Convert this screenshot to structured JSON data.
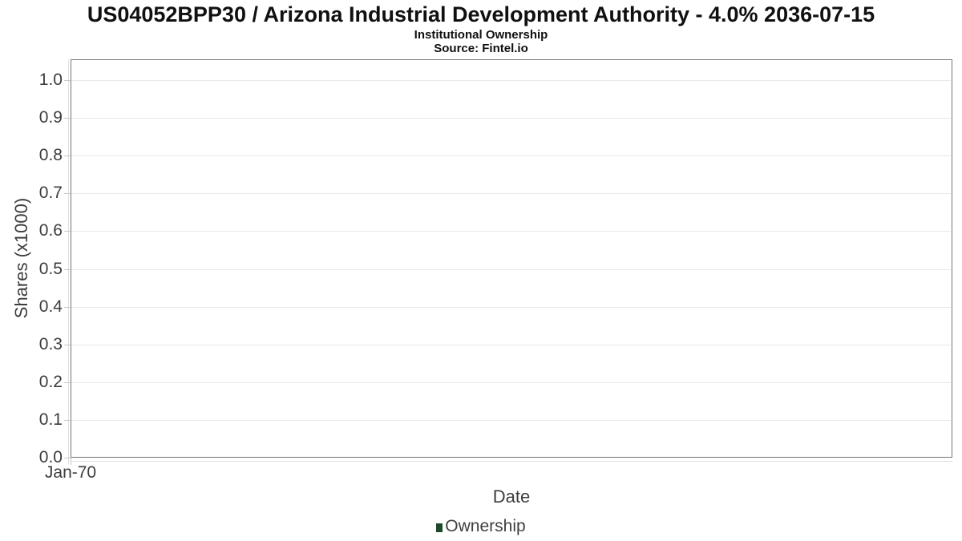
{
  "chart_data": {
    "type": "area",
    "title": "US04052BPP30 / Arizona Industrial Development Authority - 4.0% 2036-07-15",
    "subtitle": "Institutional Ownership",
    "source": "Source: Fintel.io",
    "xlabel": "Date",
    "ylabel": "Shares (x1000)",
    "x_tick_labels": [
      "Jan-70"
    ],
    "y_tick_labels": [
      "0.0",
      "0.1",
      "0.2",
      "0.3",
      "0.4",
      "0.5",
      "0.6",
      "0.7",
      "0.8",
      "0.9",
      "1.0"
    ],
    "ylim": [
      0.0,
      1.06
    ],
    "grid": "horizontal",
    "legend": {
      "position": "bottom-center",
      "entries": [
        {
          "label": "Ownership",
          "color": "#1d4a2b"
        }
      ]
    },
    "series": [
      {
        "name": "Ownership",
        "x": [],
        "values": []
      }
    ]
  },
  "colors": {
    "background": "#ffffff",
    "plot_border": "#757575",
    "gridline": "#e8e8e8",
    "tick_mark": "#c9c9c9",
    "axis_line_light": "#dedede",
    "title_text": "#101010",
    "axis_text": "#3d3d3d",
    "legend_swatch": "#1d4a2b"
  }
}
